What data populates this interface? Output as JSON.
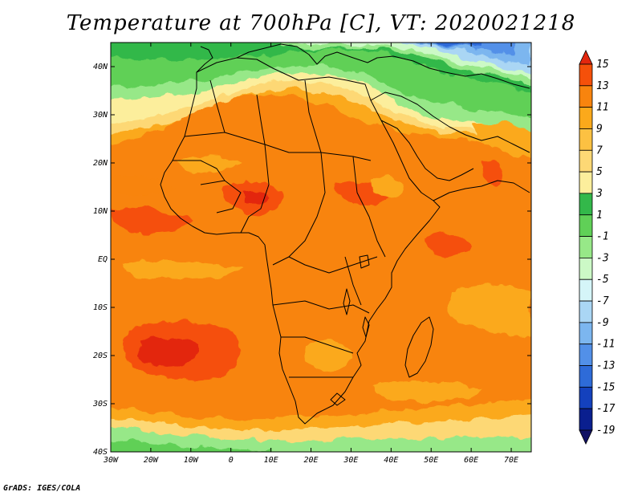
{
  "title": "Temperature at 700hPa [C], VT: 2020021218",
  "credit": "GrADS: IGES/COLA",
  "map": {
    "variable": "Temperature",
    "level": "700hPa",
    "units": "C",
    "valid_time": "2020021218",
    "lon_range": [
      -30,
      75
    ],
    "lat_range": [
      -40,
      45
    ],
    "lon_ticks": [
      {
        "value": -30,
        "label": "30W"
      },
      {
        "value": -20,
        "label": "20W"
      },
      {
        "value": -10,
        "label": "10W"
      },
      {
        "value": 0,
        "label": "0"
      },
      {
        "value": 10,
        "label": "10E"
      },
      {
        "value": 20,
        "label": "20E"
      },
      {
        "value": 30,
        "label": "30E"
      },
      {
        "value": 40,
        "label": "40E"
      },
      {
        "value": 50,
        "label": "50E"
      },
      {
        "value": 60,
        "label": "60E"
      },
      {
        "value": 70,
        "label": "70E"
      }
    ],
    "lat_ticks": [
      {
        "value": 40,
        "label": "40N"
      },
      {
        "value": 30,
        "label": "30N"
      },
      {
        "value": 20,
        "label": "20N"
      },
      {
        "value": 10,
        "label": "10N"
      },
      {
        "value": 0,
        "label": "EQ"
      },
      {
        "value": -10,
        "label": "10S"
      },
      {
        "value": -20,
        "label": "20S"
      },
      {
        "value": -30,
        "label": "30S"
      },
      {
        "value": -40,
        "label": "40S"
      }
    ]
  },
  "colorbar": {
    "labels": [
      "15",
      "13",
      "11",
      "9",
      "7",
      "5",
      "3",
      "1",
      "-1",
      "-3",
      "-5",
      "-7",
      "-9",
      "-11",
      "-13",
      "-15",
      "-17",
      "-19"
    ],
    "colors": [
      "#e3270e",
      "#f5500a",
      "#f8840e",
      "#fba91b",
      "#fcc142",
      "#fdd875",
      "#fcee9c",
      "#33b84a",
      "#60d057",
      "#97e888",
      "#ccf9c6",
      "#d5f5f8",
      "#aad6f4",
      "#7cb6ef",
      "#5290e8",
      "#2e6bd8",
      "#1441bd",
      "#0a1f8f",
      "#111164"
    ]
  }
}
